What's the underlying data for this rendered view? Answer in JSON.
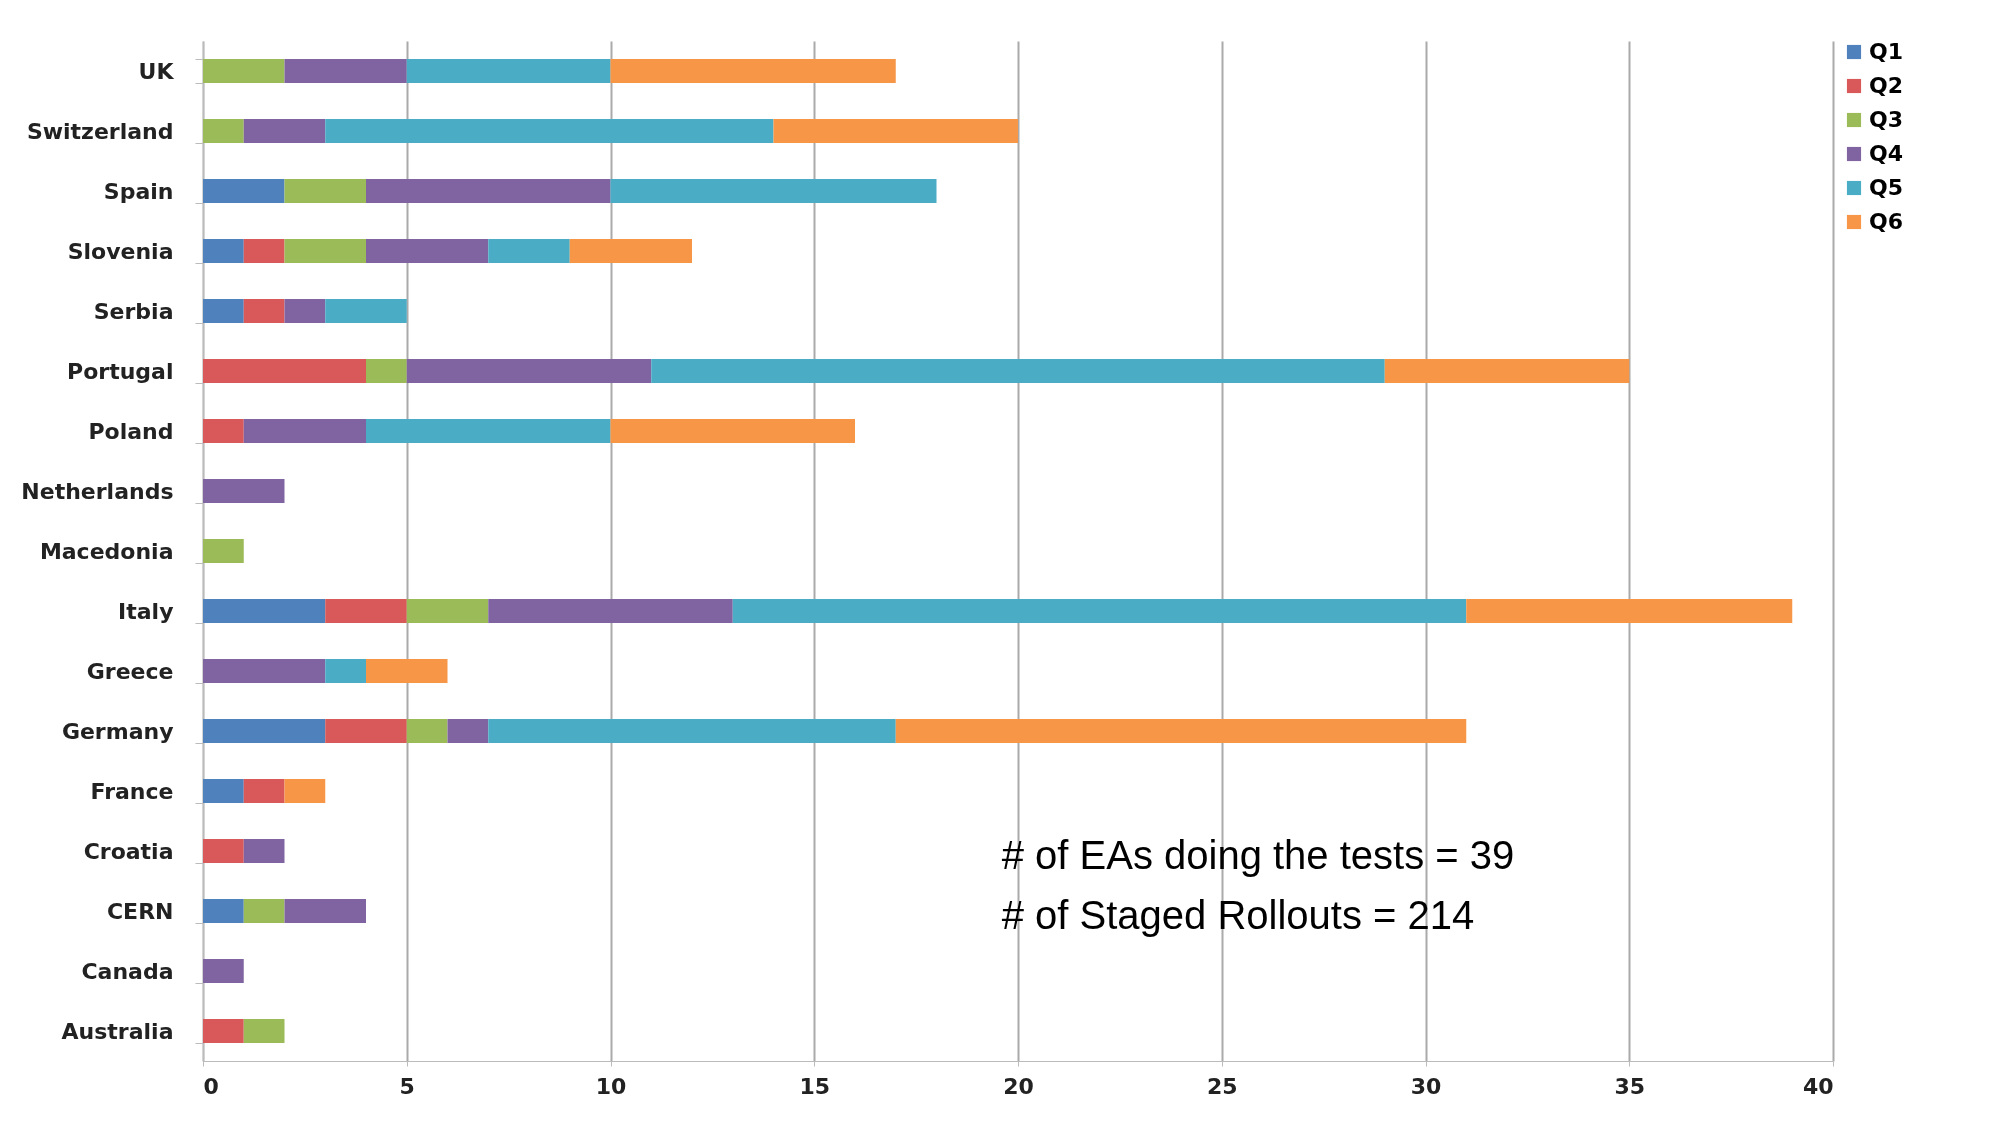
{
  "chart_data": {
    "type": "bar",
    "orientation": "horizontal",
    "stacked": true,
    "categories": [
      "UK",
      "Switzerland",
      "Spain",
      "Slovenia",
      "Serbia",
      "Portugal",
      "Poland",
      "Netherlands",
      "Macedonia",
      "Italy",
      "Greece",
      "Germany",
      "France",
      "Croatia",
      "CERN",
      "Canada",
      "Australia"
    ],
    "series": [
      {
        "name": "Q1",
        "color": "#4f81bd",
        "values": [
          null,
          null,
          2,
          1,
          1,
          null,
          null,
          null,
          null,
          3,
          null,
          3,
          1,
          null,
          1,
          null,
          null
        ]
      },
      {
        "name": "Q2",
        "color": "#d9595b",
        "values": [
          null,
          null,
          null,
          1,
          1,
          4,
          1,
          null,
          null,
          2,
          null,
          2,
          1,
          1,
          null,
          null,
          1
        ]
      },
      {
        "name": "Q3",
        "color": "#9bbb59",
        "values": [
          2,
          1,
          2,
          2,
          null,
          1,
          null,
          null,
          1,
          2,
          null,
          1,
          null,
          null,
          1,
          null,
          1
        ]
      },
      {
        "name": "Q4",
        "color": "#8064a2",
        "values": [
          3,
          2,
          6,
          3,
          1,
          6,
          3,
          2,
          null,
          6,
          3,
          1,
          null,
          1,
          2,
          1,
          null
        ]
      },
      {
        "name": "Q5",
        "color": "#4bacc6",
        "values": [
          5,
          11,
          8,
          2,
          2,
          18,
          6,
          null,
          null,
          18,
          1,
          10,
          null,
          null,
          null,
          null,
          null
        ]
      },
      {
        "name": "Q6",
        "color": "#f79646",
        "values": [
          7,
          6,
          null,
          3,
          null,
          6,
          6,
          null,
          null,
          8,
          2,
          14,
          1,
          null,
          null,
          null,
          null
        ]
      }
    ],
    "xlim": [
      0,
      40
    ],
    "xticks": [
      0,
      5,
      10,
      15,
      20,
      25,
      30,
      35,
      40
    ],
    "grid": "x",
    "legend": "right",
    "annotations": [
      "# of EAs doing the tests = 39",
      "# of Staged Rollouts = 214"
    ]
  }
}
